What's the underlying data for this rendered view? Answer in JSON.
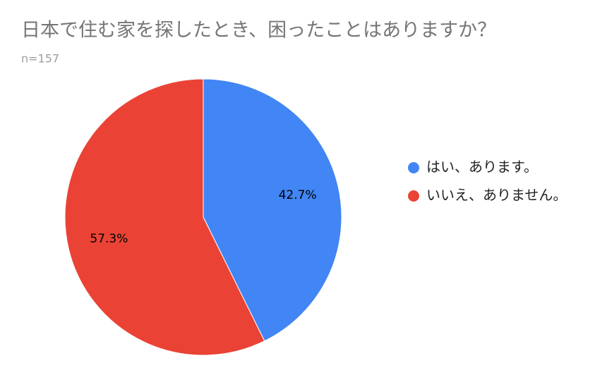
{
  "chart_data": {
    "type": "pie",
    "title": "日本で住む家を探したとき、困ったことはありますか？",
    "subtitle": "n=157",
    "categories": [
      "はい、あります。",
      "いいえ、ありません。"
    ],
    "values": [
      42.7,
      57.3
    ],
    "value_labels": [
      "42.7%",
      "57.3%"
    ],
    "colors": [
      "#4285f4",
      "#ea4335"
    ],
    "legend": "right"
  }
}
